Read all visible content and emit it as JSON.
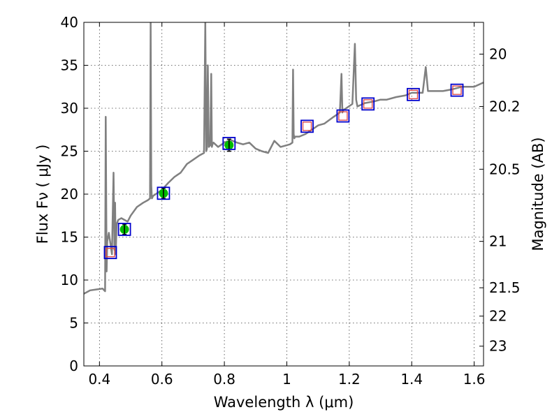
{
  "chart_data": {
    "type": "scatter",
    "title": "",
    "xlabel": "Wavelength  λ (μm)",
    "ylabel": "Flux  Fν  ( μJy )",
    "y2label": "Magnitude (AB)",
    "xlim": [
      0.35,
      1.63
    ],
    "ylim": [
      0,
      40
    ],
    "grid": true,
    "x_ticks": [
      {
        "value": 0.4,
        "label": "0.4"
      },
      {
        "value": 0.6,
        "label": "0.6"
      },
      {
        "value": 0.8,
        "label": "0.8"
      },
      {
        "value": 1.0,
        "label": "1"
      },
      {
        "value": 1.2,
        "label": "1.2"
      },
      {
        "value": 1.4,
        "label": "1.4"
      },
      {
        "value": 1.6,
        "label": "1.6"
      }
    ],
    "y_ticks": [
      {
        "value": 0,
        "label": "0"
      },
      {
        "value": 5,
        "label": "5"
      },
      {
        "value": 10,
        "label": "10"
      },
      {
        "value": 15,
        "label": "15"
      },
      {
        "value": 20,
        "label": "20"
      },
      {
        "value": 25,
        "label": "25"
      },
      {
        "value": 30,
        "label": "30"
      },
      {
        "value": 35,
        "label": "35"
      },
      {
        "value": 40,
        "label": "40"
      }
    ],
    "y2_ticks": [
      {
        "flux": 36.3,
        "label": "20"
      },
      {
        "flux": 30.2,
        "label": "20.2"
      },
      {
        "flux": 22.9,
        "label": "20.5"
      },
      {
        "flux": 14.5,
        "label": "21"
      },
      {
        "flux": 9.1,
        "label": "21.5"
      },
      {
        "flux": 5.8,
        "label": "22"
      },
      {
        "flux": 2.3,
        "label": "23"
      }
    ],
    "model_spectrum": {
      "color": "#808080",
      "x": [
        0.35,
        0.37,
        0.39,
        0.41,
        0.418,
        0.42,
        0.423,
        0.425,
        0.43,
        0.44,
        0.445,
        0.448,
        0.45,
        0.452,
        0.455,
        0.46,
        0.47,
        0.48,
        0.49,
        0.5,
        0.52,
        0.54,
        0.555,
        0.562,
        0.564,
        0.566,
        0.568,
        0.572,
        0.58,
        0.6,
        0.62,
        0.64,
        0.66,
        0.68,
        0.7,
        0.72,
        0.735,
        0.739,
        0.742,
        0.744,
        0.747,
        0.75,
        0.755,
        0.758,
        0.76,
        0.762,
        0.765,
        0.78,
        0.8,
        0.82,
        0.84,
        0.86,
        0.88,
        0.9,
        0.92,
        0.94,
        0.96,
        0.98,
        1.0,
        1.01,
        1.018,
        1.02,
        1.022,
        1.024,
        1.027,
        1.04,
        1.06,
        1.08,
        1.1,
        1.12,
        1.15,
        1.17,
        1.175,
        1.178,
        1.181,
        1.19,
        1.21,
        1.218,
        1.222,
        1.226,
        1.232,
        1.25,
        1.28,
        1.3,
        1.32,
        1.35,
        1.38,
        1.4,
        1.42,
        1.435,
        1.445,
        1.452,
        1.46,
        1.48,
        1.5,
        1.53,
        1.56,
        1.6,
        1.63
      ],
      "y": [
        8.4,
        8.8,
        8.9,
        9.0,
        8.7,
        29.0,
        11.0,
        14.5,
        15.5,
        13.0,
        22.5,
        13.5,
        19.0,
        13.0,
        16.5,
        17.0,
        17.2,
        17.0,
        16.8,
        17.5,
        18.5,
        19.0,
        19.3,
        19.5,
        40.0,
        21.0,
        19.5,
        19.8,
        20.0,
        20.5,
        21.3,
        22.0,
        22.5,
        23.5,
        24.0,
        24.5,
        24.8,
        40.0,
        25.0,
        25.3,
        35.0,
        25.5,
        25.7,
        34.0,
        25.5,
        25.8,
        26.0,
        25.5,
        26.0,
        26.3,
        26.0,
        25.8,
        26.0,
        25.3,
        25.0,
        24.8,
        26.2,
        25.5,
        25.7,
        25.8,
        26.0,
        34.5,
        27.0,
        26.5,
        26.7,
        26.7,
        27.0,
        27.5,
        28.0,
        28.2,
        29.0,
        29.5,
        34.0,
        29.5,
        29.8,
        30.0,
        30.5,
        37.5,
        31.0,
        30.2,
        30.3,
        30.6,
        30.8,
        31.0,
        31.0,
        31.3,
        31.5,
        31.8,
        31.8,
        31.8,
        34.8,
        32.0,
        32.0,
        32.0,
        32.0,
        32.2,
        32.5,
        32.5,
        33.0
      ]
    },
    "synthetic_photometry": {
      "marker": "square",
      "color": "#0000cc",
      "x": [
        0.435,
        0.48,
        0.605,
        0.815,
        1.065,
        1.18,
        1.26,
        1.405,
        1.545
      ],
      "y": [
        13.2,
        15.9,
        20.1,
        25.9,
        27.9,
        29.1,
        30.5,
        31.6,
        32.1
      ]
    },
    "observed_photometry": {
      "marker": "circle",
      "color": "#00bb00",
      "x": [
        0.48,
        0.605,
        0.815
      ],
      "y": [
        15.9,
        20.1,
        25.7
      ],
      "yerr": [
        0.6,
        0.6,
        0.7
      ]
    },
    "upper_limits": {
      "marker": "square",
      "color": "#dd4444",
      "x": [
        0.435,
        1.065,
        1.18,
        1.26,
        1.405,
        1.545
      ],
      "y": [
        13.2,
        27.9,
        29.1,
        30.5,
        31.6,
        32.1
      ]
    }
  }
}
